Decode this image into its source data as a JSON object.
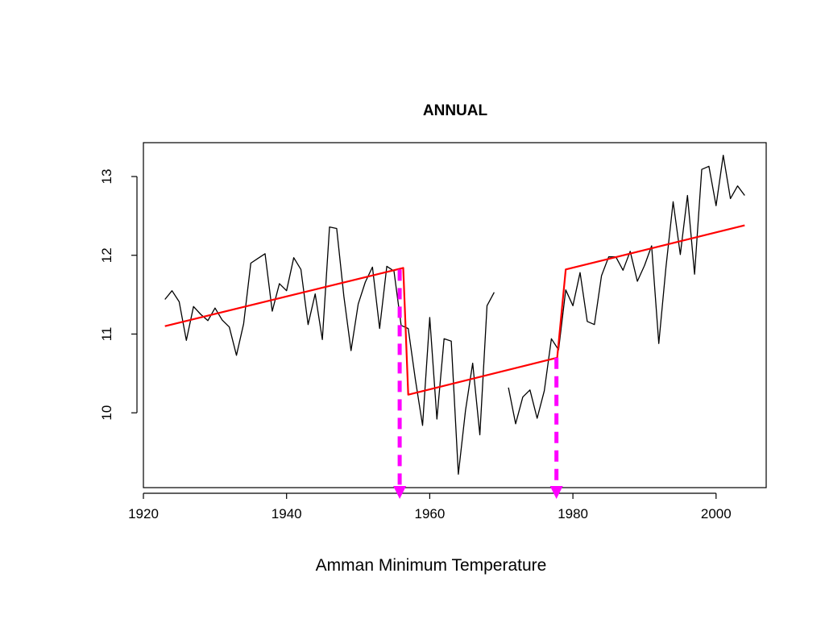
{
  "caption": "Amman Minimum Temperature",
  "chart_data": {
    "type": "line",
    "title": "ANNUAL",
    "xlabel": "",
    "ylabel": "",
    "xlim": [
      1920,
      2007
    ],
    "ylim": [
      9.05,
      13.43
    ],
    "xticks": [
      1920,
      1940,
      1960,
      1980,
      2000
    ],
    "yticks": [
      10,
      11,
      12,
      13
    ],
    "grid": false,
    "legend": "none",
    "series": [
      {
        "color": "#000000",
        "points": [
          [
            1923,
            11.44
          ],
          [
            1924,
            11.55
          ],
          [
            1925,
            11.41
          ],
          [
            1926,
            10.92
          ],
          [
            1927,
            11.35
          ],
          [
            1928,
            11.25
          ],
          [
            1929,
            11.17
          ],
          [
            1930,
            11.33
          ],
          [
            1931,
            11.18
          ],
          [
            1932,
            11.09
          ],
          [
            1933,
            10.73
          ],
          [
            1934,
            11.13
          ],
          [
            1935,
            11.9
          ],
          [
            1936,
            11.96
          ],
          [
            1937,
            12.02
          ],
          [
            1938,
            11.29
          ],
          [
            1939,
            11.64
          ],
          [
            1940,
            11.55
          ],
          [
            1941,
            11.97
          ],
          [
            1942,
            11.82
          ],
          [
            1943,
            11.12
          ],
          [
            1944,
            11.51
          ],
          [
            1945,
            10.93
          ],
          [
            1946,
            12.36
          ],
          [
            1947,
            12.34
          ],
          [
            1948,
            11.48
          ],
          [
            1949,
            10.79
          ],
          [
            1950,
            11.38
          ],
          [
            1951,
            11.66
          ],
          [
            1952,
            11.85
          ],
          [
            1953,
            11.07
          ],
          [
            1954,
            11.86
          ],
          [
            1955,
            11.8
          ],
          [
            1956,
            11.11
          ],
          [
            1957,
            11.07
          ],
          [
            1958,
            10.42
          ],
          [
            1959,
            9.84
          ],
          [
            1960,
            11.21
          ],
          [
            1961,
            9.92
          ],
          [
            1962,
            10.94
          ],
          [
            1963,
            10.91
          ],
          [
            1964,
            9.22
          ],
          [
            1965,
            10.03
          ],
          [
            1966,
            10.63
          ],
          [
            1967,
            9.72
          ],
          [
            1968,
            11.36
          ],
          [
            1969,
            11.53
          ],
          [
            1970,
            null
          ],
          [
            1971,
            10.32
          ],
          [
            1972,
            9.86
          ],
          [
            1973,
            10.2
          ],
          [
            1974,
            10.29
          ],
          [
            1975,
            9.93
          ],
          [
            1976,
            10.28
          ],
          [
            1977,
            10.94
          ],
          [
            1978,
            10.8
          ],
          [
            1979,
            11.56
          ],
          [
            1980,
            11.36
          ],
          [
            1981,
            11.78
          ],
          [
            1982,
            11.16
          ],
          [
            1983,
            11.12
          ],
          [
            1984,
            11.74
          ],
          [
            1985,
            11.98
          ],
          [
            1986,
            11.98
          ],
          [
            1987,
            11.81
          ],
          [
            1988,
            12.05
          ],
          [
            1989,
            11.67
          ],
          [
            1990,
            11.87
          ],
          [
            1991,
            12.12
          ],
          [
            1992,
            10.88
          ],
          [
            1993,
            11.85
          ],
          [
            1994,
            12.68
          ],
          [
            1995,
            12.01
          ],
          [
            1996,
            12.76
          ],
          [
            1997,
            11.76
          ],
          [
            1998,
            13.09
          ],
          [
            1999,
            13.13
          ],
          [
            2000,
            12.63
          ],
          [
            2001,
            13.27
          ],
          [
            2002,
            12.72
          ],
          [
            2003,
            12.88
          ],
          [
            2004,
            12.76
          ]
        ]
      },
      {
        "color": "#ff0000",
        "points": [
          [
            1923,
            11.1
          ],
          [
            1956.3,
            11.84
          ],
          [
            1957,
            10.23
          ],
          [
            1977.8,
            10.7
          ],
          [
            1979,
            11.82
          ],
          [
            2004,
            12.38
          ]
        ]
      }
    ],
    "annotations": [
      {
        "type": "arrow",
        "color": "#ff00ff",
        "x": 1955.8,
        "y_from": 11.82
      },
      {
        "type": "arrow",
        "color": "#ff00ff",
        "x": 1977.7,
        "y_from": 10.7
      }
    ]
  }
}
